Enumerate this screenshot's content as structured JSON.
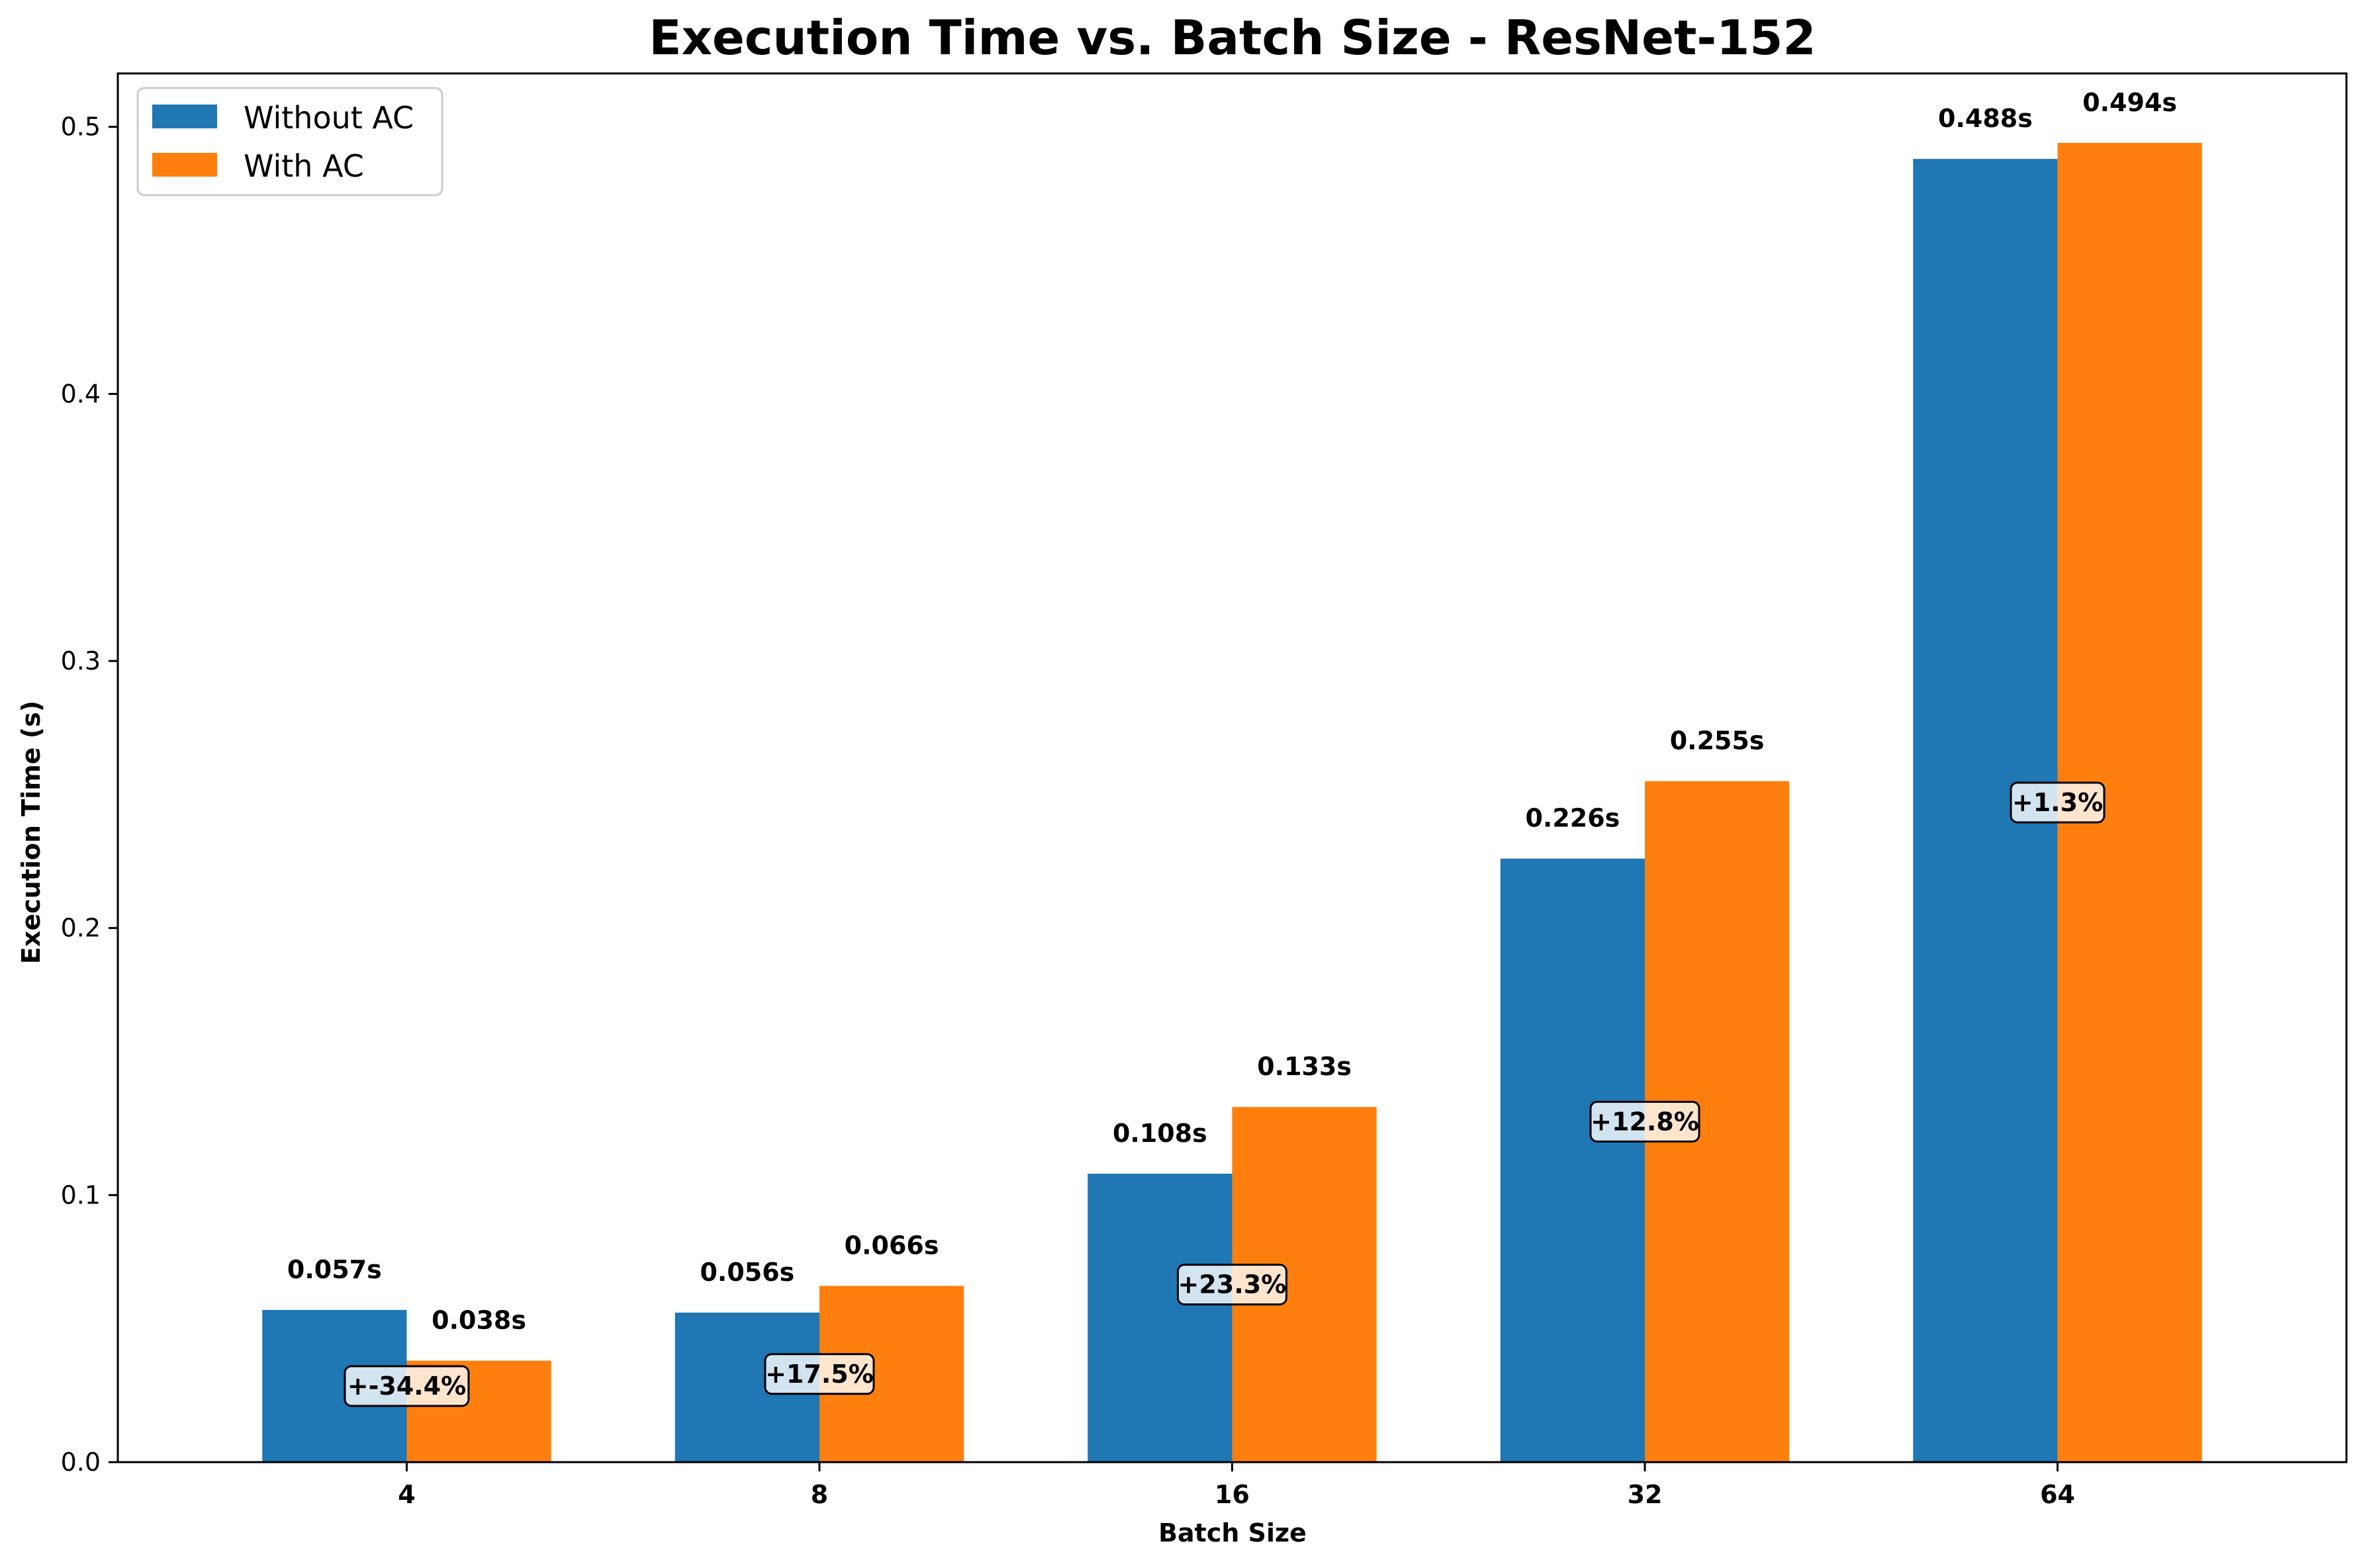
{
  "chart_data": {
    "type": "bar",
    "title": "Execution Time vs. Batch Size - ResNet-152",
    "xlabel": "Batch Size",
    "ylabel": "Execution Time (s)",
    "categories": [
      "4",
      "8",
      "16",
      "32",
      "64"
    ],
    "ylim": [
      0,
      0.52
    ],
    "yticks": [
      0.0,
      0.1,
      0.2,
      0.3,
      0.4,
      0.5
    ],
    "ytick_labels": [
      "0.0",
      "0.1",
      "0.2",
      "0.3",
      "0.4",
      "0.5"
    ],
    "grid": false,
    "legend_position": "top-left",
    "series": [
      {
        "name": "Without AC",
        "color": "#1f77b4",
        "values": [
          0.057,
          0.056,
          0.108,
          0.226,
          0.488
        ],
        "value_labels": [
          "0.057s",
          "0.056s",
          "0.108s",
          "0.226s",
          "0.488s"
        ]
      },
      {
        "name": "With AC",
        "color": "#ff7f0e",
        "values": [
          0.038,
          0.066,
          0.133,
          0.255,
          0.494
        ],
        "value_labels": [
          "0.038s",
          "0.066s",
          "0.133s",
          "0.255s",
          "0.494s"
        ]
      }
    ],
    "annotations": [
      "+-34.4%",
      "+17.5%",
      "+23.3%",
      "+12.8%",
      "+1.3%"
    ]
  }
}
